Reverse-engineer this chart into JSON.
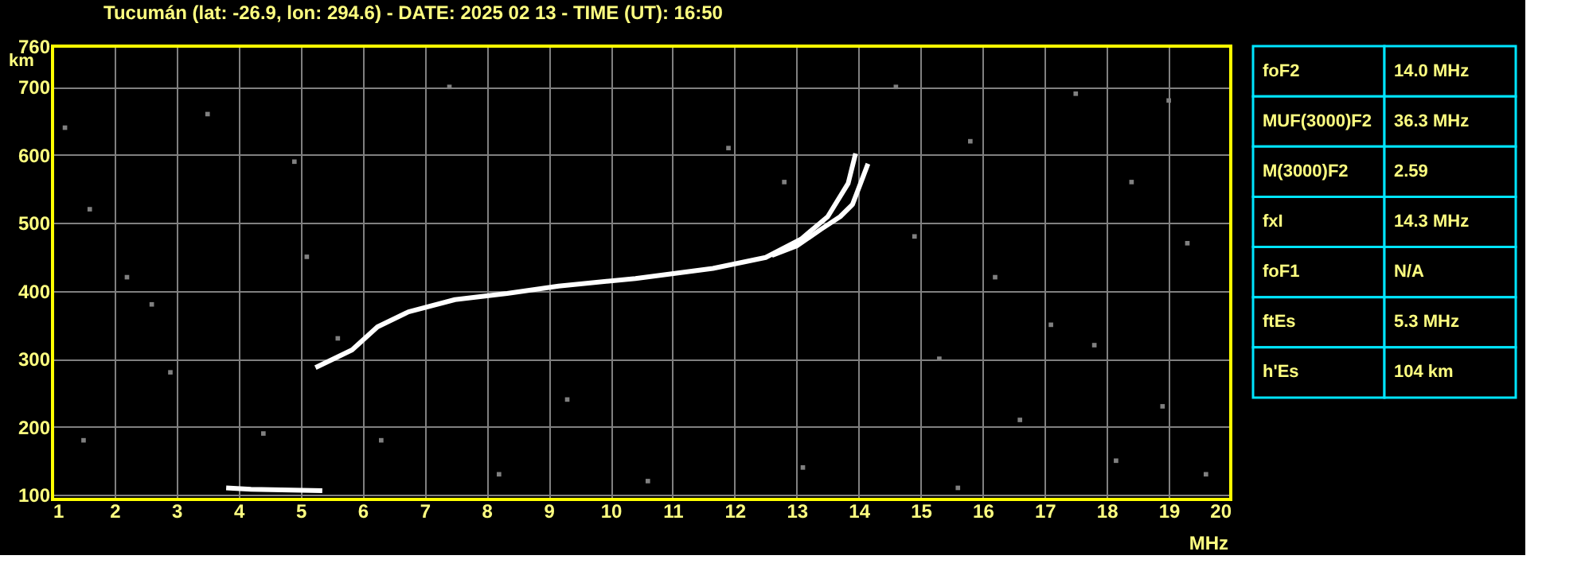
{
  "chart_data": [
    {
      "type": "line",
      "title": "Tucumán (lat: -26.9, lon: 294.6) - DATE: 2025 02 13 - TIME (UT): 16:50",
      "xlabel": "MHz",
      "ylabel": "km",
      "xlim": [
        1,
        20
      ],
      "xticks": [
        1,
        2,
        3,
        4,
        5,
        6,
        7,
        8,
        9,
        10,
        11,
        12,
        13,
        14,
        15,
        16,
        17,
        18,
        19,
        20
      ],
      "ylim": [
        93,
        760
      ],
      "yticks": [
        100,
        200,
        300,
        400,
        500,
        600,
        700,
        760
      ],
      "grid": true,
      "marker": "none",
      "line_style": "solid",
      "series": [
        {
          "color": "#ffffff",
          "x": [
            5.24,
            5.83,
            6.24,
            6.74,
            7.49,
            8.33,
            9.16,
            10.4,
            11.65,
            12.5,
            13.07,
            13.5,
            13.83,
            13.95
          ],
          "values": [
            287,
            313,
            347,
            369,
            387,
            396,
            407,
            418,
            433,
            449,
            476,
            509,
            558,
            602
          ]
        },
        {
          "color": "#ffffff",
          "x": [
            12.6,
            13.0,
            13.4,
            13.7,
            13.9,
            14.03,
            14.15
          ],
          "values": [
            452,
            466,
            491,
            509,
            527,
            558,
            587
          ]
        },
        {
          "color": "#ffffff",
          "x": [
            3.8,
            4.2,
            5.35
          ],
          "values": [
            110,
            108,
            106
          ]
        },
        {
          "type": "scatter",
          "marker": "square",
          "color": "#808080",
          "x": [
            1.2,
            1.6,
            2.2,
            2.9,
            3.5,
            4.4,
            5.1,
            5.6,
            6.3,
            7.4,
            8.2,
            9.3,
            10.6,
            11.9,
            12.8,
            13.1,
            14.6,
            14.9,
            15.3,
            15.8,
            16.2,
            16.6,
            17.1,
            17.5,
            18.15,
            18.4,
            18.9,
            19.3,
            19.6,
            1.5,
            2.6,
            4.9,
            15.6,
            17.8,
            19.0
          ],
          "values": [
            640,
            520,
            420,
            280,
            660,
            190,
            450,
            330,
            180,
            700,
            130,
            240,
            120,
            610,
            560,
            140,
            700,
            480,
            300,
            620,
            420,
            210,
            350,
            690,
            150,
            560,
            230,
            470,
            130,
            180,
            380,
            590,
            110,
            320,
            680
          ]
        }
      ]
    },
    {
      "type": "other",
      "annotations": [
        "foF2",
        "14.0 MHz",
        "MUF(3000)F2",
        "36.3 MHz",
        "M(3000)F2",
        "2.59",
        "fxI",
        "14.3 MHz",
        "foF1",
        "N/A",
        "ftEs",
        "5.3 MHz",
        "h'Es",
        "104 km"
      ]
    }
  ]
}
